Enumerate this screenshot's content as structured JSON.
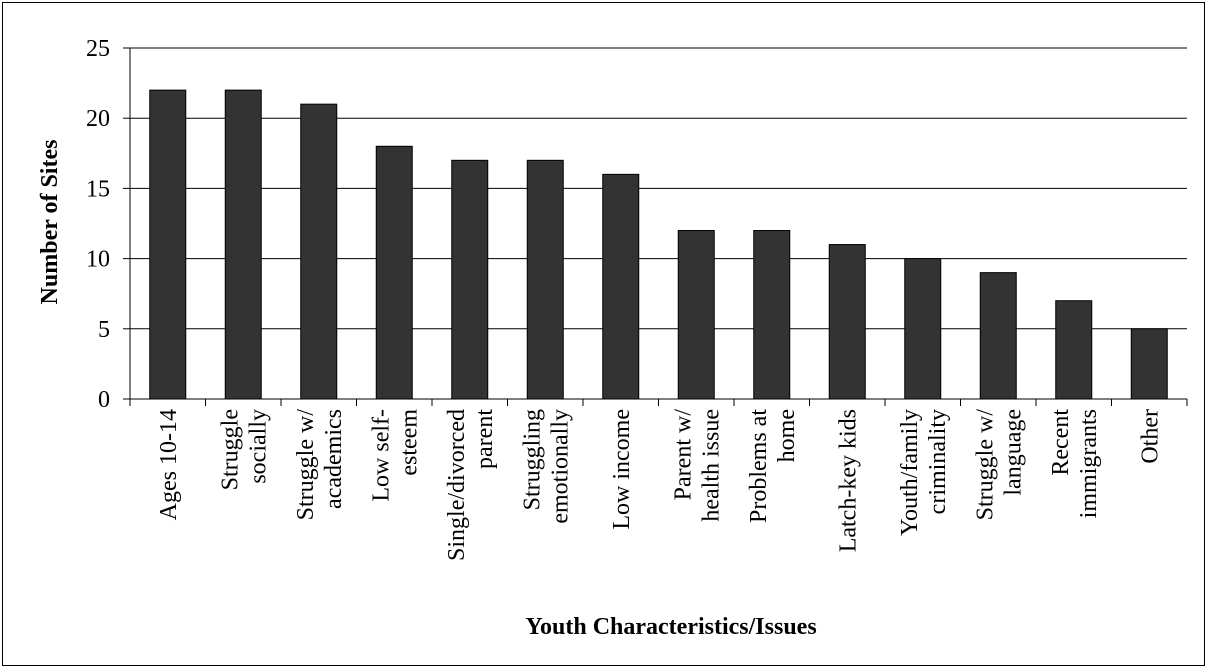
{
  "chart_data": {
    "type": "bar",
    "title": "",
    "xlabel": "Youth Characteristics/Issues",
    "ylabel": "Number of Sites",
    "ylim": [
      0,
      25
    ],
    "yticks": [
      0,
      5,
      10,
      15,
      20,
      25
    ],
    "grid": true,
    "legend": "none",
    "bar_color": "#333333",
    "categories": [
      [
        "Ages 10-14"
      ],
      [
        "Struggle",
        "socially"
      ],
      [
        "Struggle w/",
        "academics"
      ],
      [
        "Low self-",
        "esteem"
      ],
      [
        "Single/divorced",
        "parent"
      ],
      [
        "Struggling",
        "emotionally"
      ],
      [
        "Low income"
      ],
      [
        "Parent w/",
        "health issue"
      ],
      [
        "Problems at",
        "home"
      ],
      [
        "Latch-key kids"
      ],
      [
        "Youth/family",
        "criminality"
      ],
      [
        "Struggle w/",
        "language"
      ],
      [
        "Recent",
        "immigrants"
      ],
      [
        "Other"
      ]
    ],
    "values": [
      22,
      22,
      21,
      18,
      17,
      17,
      16,
      12,
      12,
      11,
      10,
      9,
      7,
      5
    ]
  }
}
